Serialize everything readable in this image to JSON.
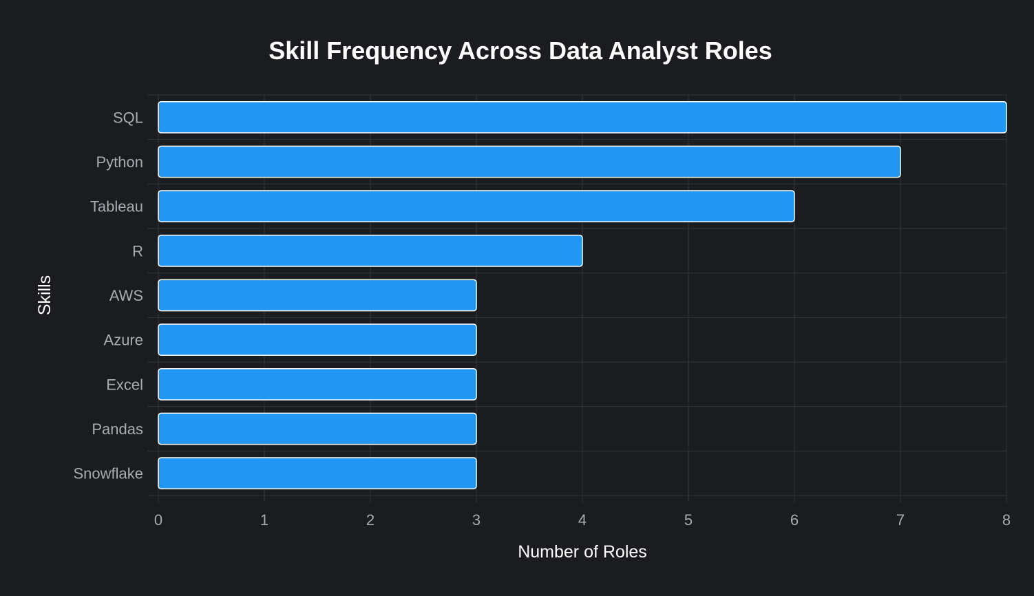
{
  "chart_data": {
    "type": "bar",
    "orientation": "horizontal",
    "title": "Skill Frequency Across Data Analyst Roles",
    "xlabel": "Number of Roles",
    "ylabel": "Skills",
    "categories": [
      "SQL",
      "Python",
      "Tableau",
      "R",
      "AWS",
      "Azure",
      "Excel",
      "Pandas",
      "Snowflake"
    ],
    "values": [
      8,
      7,
      6,
      4,
      3,
      3,
      3,
      3,
      3
    ],
    "xlim": [
      0,
      8
    ],
    "x_ticks": [
      "0",
      "1",
      "2",
      "3",
      "4",
      "5",
      "6",
      "7",
      "8"
    ],
    "grid": true,
    "colors": {
      "background": "#1b1c20",
      "bar_fill": "#2196f3",
      "bar_edge": "#ffffff",
      "grid": "#34363b",
      "tick_text": "#a9abb2",
      "title_text": "#ffffff"
    }
  }
}
